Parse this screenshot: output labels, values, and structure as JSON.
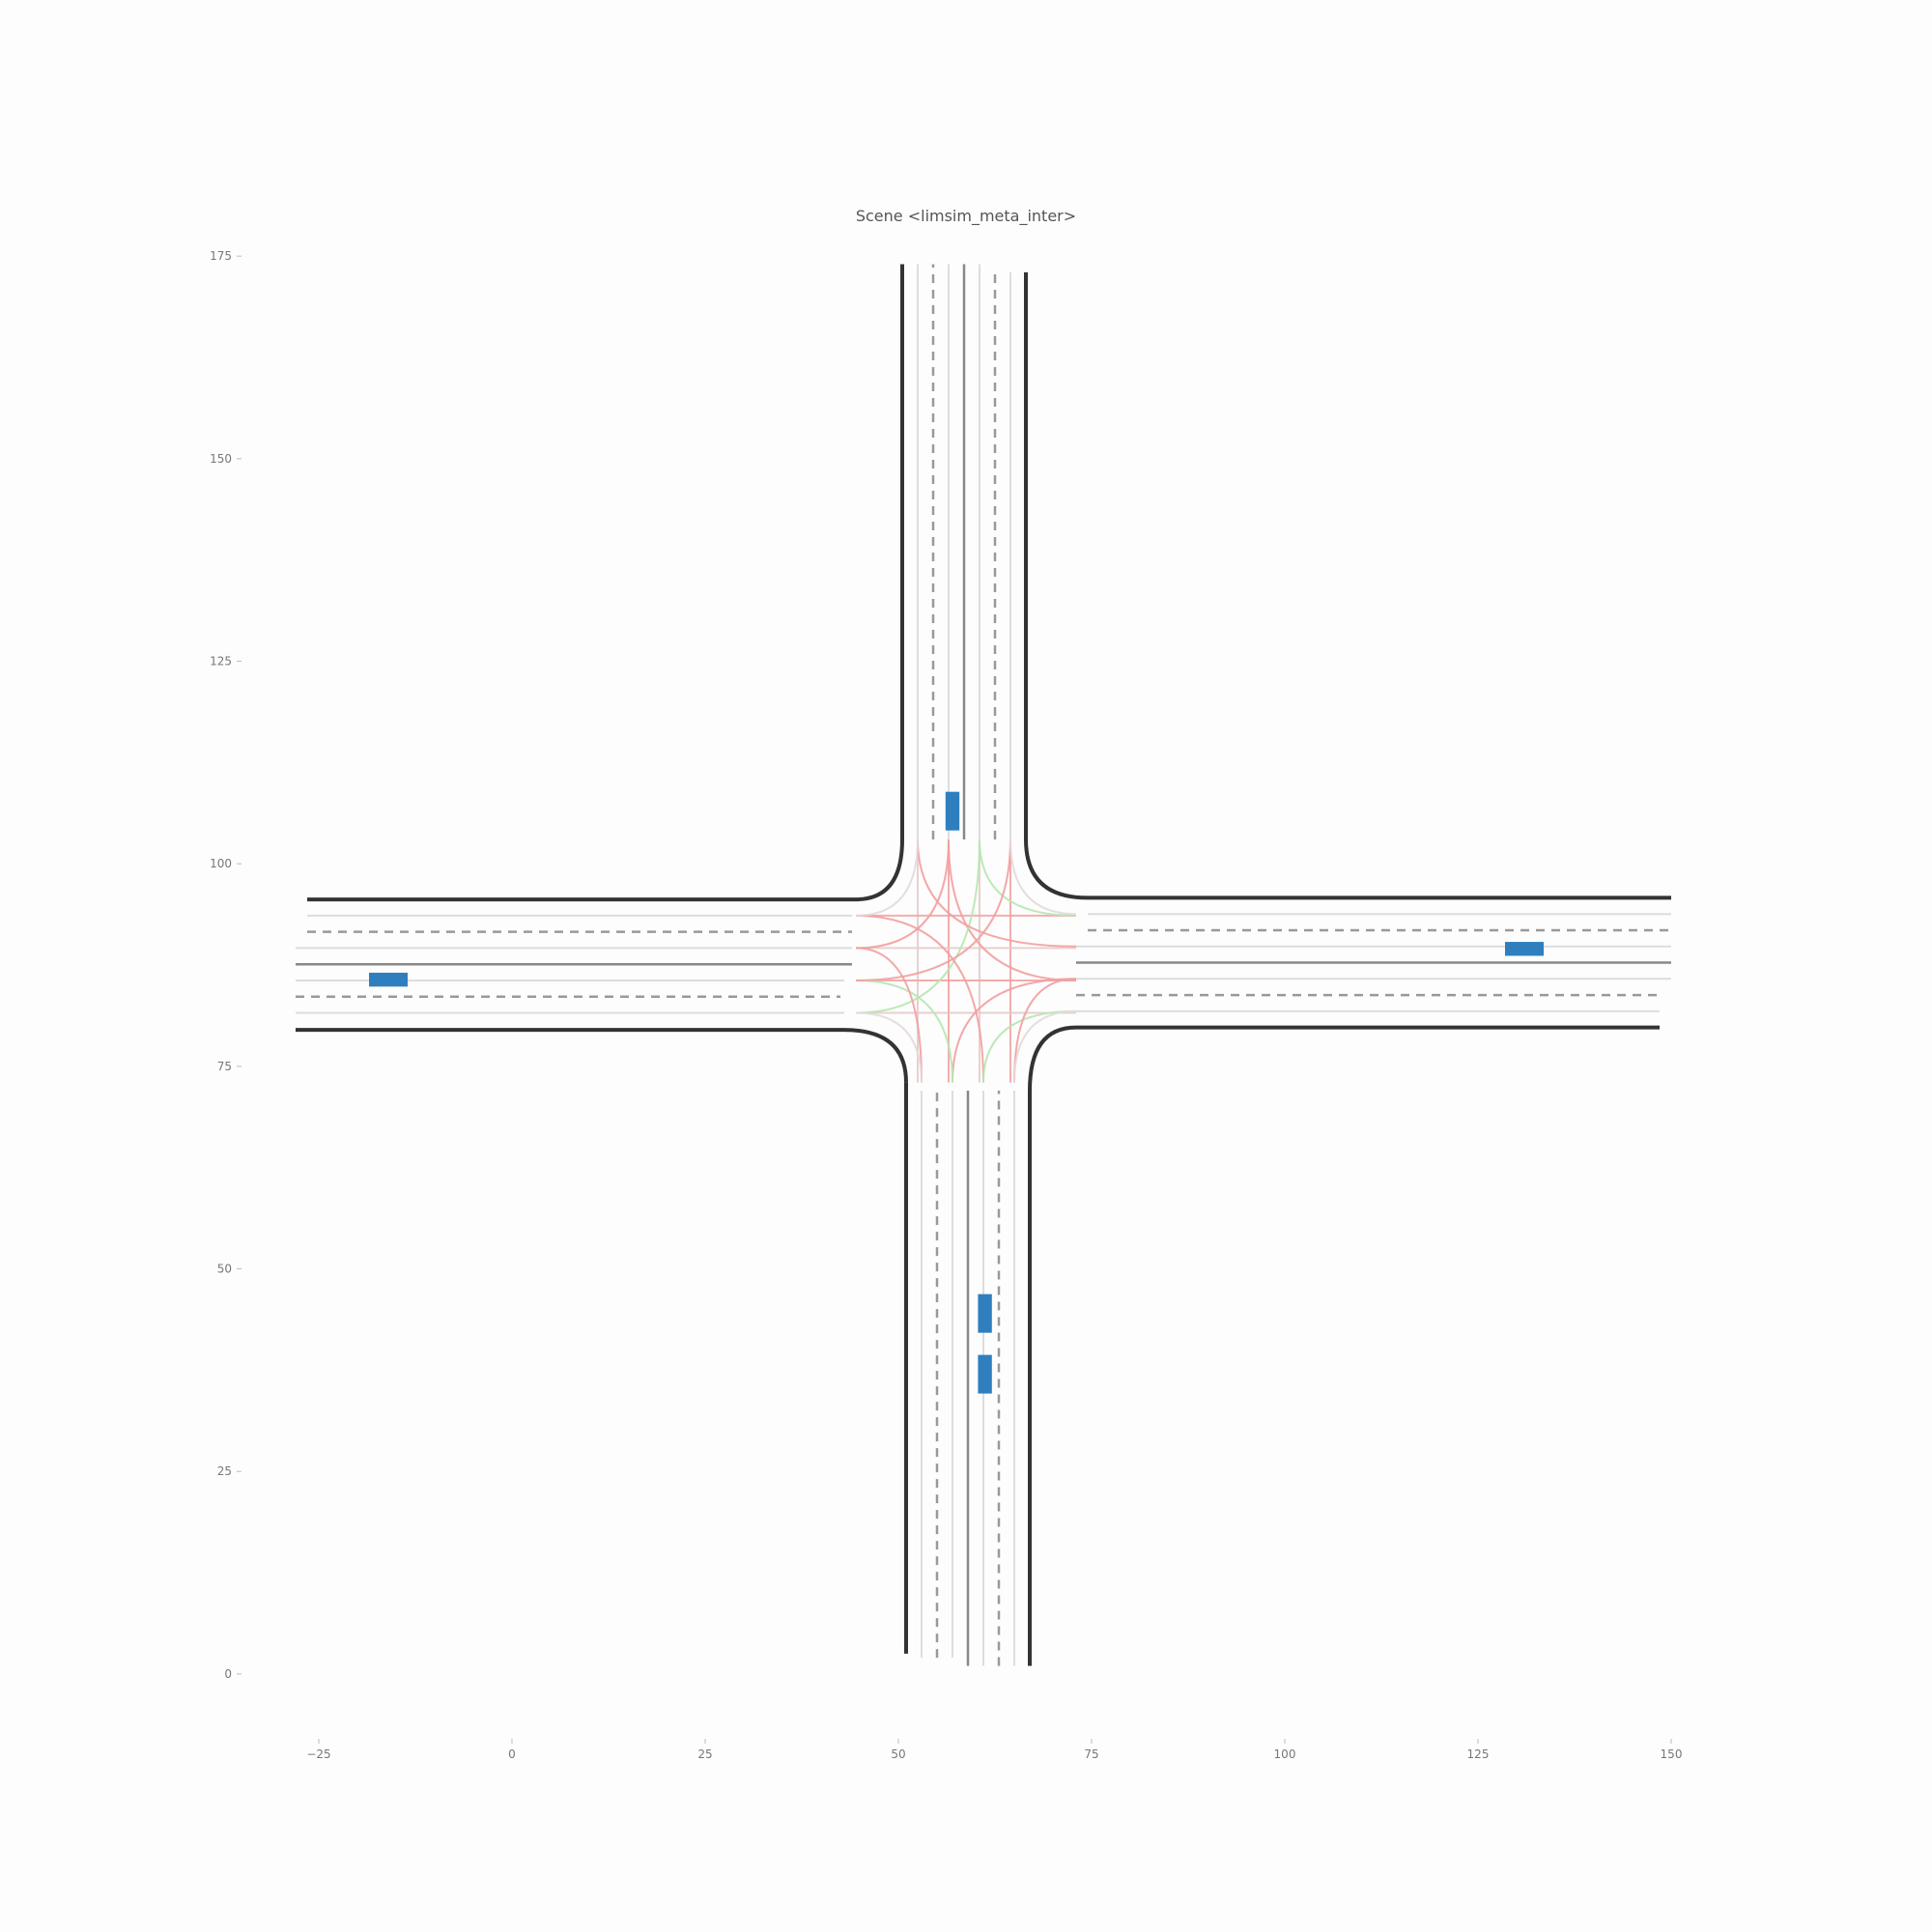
{
  "chart_data": {
    "type": "scatter",
    "title": "Scene <limsim_meta_inter>",
    "xlabel": "",
    "ylabel": "",
    "xlim": [
      -35,
      160
    ],
    "ylim": [
      -8,
      178
    ],
    "x_ticks": [
      -25,
      0,
      25,
      50,
      75,
      100,
      125,
      150
    ],
    "y_ticks": [
      0,
      25,
      50,
      75,
      100,
      125,
      150,
      175
    ],
    "x_tick_labels": [
      "−25",
      "0",
      "25",
      "50",
      "75",
      "100",
      "125",
      "150"
    ],
    "y_tick_labels": [
      "0",
      "25",
      "50",
      "75",
      "100",
      "125",
      "150",
      "175"
    ],
    "grid": false,
    "colors": {
      "road_edge": "#333333",
      "lane_divider_solid": "#888888",
      "lane_divider_dashed": "#999999",
      "lane_center": "#dddddd",
      "connector_conflict": "#f2a0a0",
      "connector_clear": "#b6e7b0",
      "vehicle": "#2f7fbf"
    },
    "series": [
      {
        "type": "vehicles",
        "points": [
          {
            "x": 57.0,
            "y": 106.5,
            "heading": "vertical"
          },
          {
            "x": 61.2,
            "y": 44.5,
            "heading": "vertical"
          },
          {
            "x": 61.2,
            "y": 37.0,
            "heading": "vertical"
          },
          {
            "x": -16.0,
            "y": 85.7,
            "heading": "horizontal"
          },
          {
            "x": 131.0,
            "y": 89.5,
            "heading": "horizontal"
          }
        ]
      }
    ],
    "road_network": {
      "road_edges": [
        {
          "type": "vertical",
          "x": 50.5,
          "y_range": [
            103,
            174
          ]
        },
        {
          "type": "vertical",
          "x": 66.5,
          "y_range": [
            103,
            173
          ]
        },
        {
          "type": "vertical",
          "x": 51.0,
          "y_range": [
            2.5,
            73
          ]
        },
        {
          "type": "vertical",
          "x": 67.0,
          "y_range": [
            1,
            72
          ]
        },
        {
          "type": "horizontal",
          "y": 95.6,
          "x_range": [
            -26.5,
            44.5
          ]
        },
        {
          "type": "horizontal",
          "y": 79.5,
          "x_range": [
            -28,
            43
          ]
        },
        {
          "type": "horizontal",
          "y": 95.8,
          "x_range": [
            74.5,
            150
          ]
        },
        {
          "type": "horizontal",
          "y": 79.8,
          "x_range": [
            73,
            148.5
          ]
        }
      ],
      "solid_dividers": [
        {
          "type": "vertical",
          "x": 58.5,
          "y_range": [
            103,
            174
          ]
        },
        {
          "type": "vertical",
          "x": 59.0,
          "y_range": [
            1,
            72
          ]
        },
        {
          "type": "horizontal",
          "y": 87.6,
          "x_range": [
            -28,
            44
          ]
        },
        {
          "type": "horizontal",
          "y": 87.8,
          "x_range": [
            73,
            150
          ]
        }
      ],
      "dashed_dividers": [
        {
          "type": "vertical",
          "x": 54.5,
          "y_range": [
            103,
            174
          ]
        },
        {
          "type": "vertical",
          "x": 62.5,
          "y_range": [
            103,
            173
          ]
        },
        {
          "type": "vertical",
          "x": 55.0,
          "y_range": [
            2,
            72
          ]
        },
        {
          "type": "vertical",
          "x": 63.0,
          "y_range": [
            1,
            72
          ]
        },
        {
          "type": "horizontal",
          "y": 91.6,
          "x_range": [
            -26.5,
            44
          ]
        },
        {
          "type": "horizontal",
          "y": 83.6,
          "x_range": [
            -28,
            42.5
          ]
        },
        {
          "type": "horizontal",
          "y": 91.8,
          "x_range": [
            74.5,
            150
          ]
        },
        {
          "type": "horizontal",
          "y": 83.8,
          "x_range": [
            73,
            148.5
          ]
        }
      ],
      "lane_centers": [
        {
          "type": "vertical",
          "x": 52.5,
          "y_range": [
            103,
            174
          ]
        },
        {
          "type": "vertical",
          "x": 56.5,
          "y_range": [
            103,
            174
          ]
        },
        {
          "type": "vertical",
          "x": 60.5,
          "y_range": [
            103,
            174
          ]
        },
        {
          "type": "vertical",
          "x": 64.5,
          "y_range": [
            103,
            173
          ]
        },
        {
          "type": "vertical",
          "x": 53.0,
          "y_range": [
            2,
            72
          ]
        },
        {
          "type": "vertical",
          "x": 57.0,
          "y_range": [
            2,
            72
          ]
        },
        {
          "type": "vertical",
          "x": 61.0,
          "y_range": [
            1,
            72
          ]
        },
        {
          "type": "vertical",
          "x": 65.0,
          "y_range": [
            1,
            72
          ]
        },
        {
          "type": "horizontal",
          "y": 93.6,
          "x_range": [
            -26.5,
            44
          ]
        },
        {
          "type": "horizontal",
          "y": 89.6,
          "x_range": [
            -28,
            44
          ]
        },
        {
          "type": "horizontal",
          "y": 85.6,
          "x_range": [
            -28,
            43
          ]
        },
        {
          "type": "horizontal",
          "y": 81.6,
          "x_range": [
            -28,
            43
          ]
        },
        {
          "type": "horizontal",
          "y": 93.8,
          "x_range": [
            74.5,
            150
          ]
        },
        {
          "type": "horizontal",
          "y": 89.8,
          "x_range": [
            73,
            150
          ]
        },
        {
          "type": "horizontal",
          "y": 85.8,
          "x_range": [
            73,
            150
          ]
        },
        {
          "type": "horizontal",
          "y": 81.8,
          "x_range": [
            73,
            148.5
          ]
        }
      ]
    }
  }
}
